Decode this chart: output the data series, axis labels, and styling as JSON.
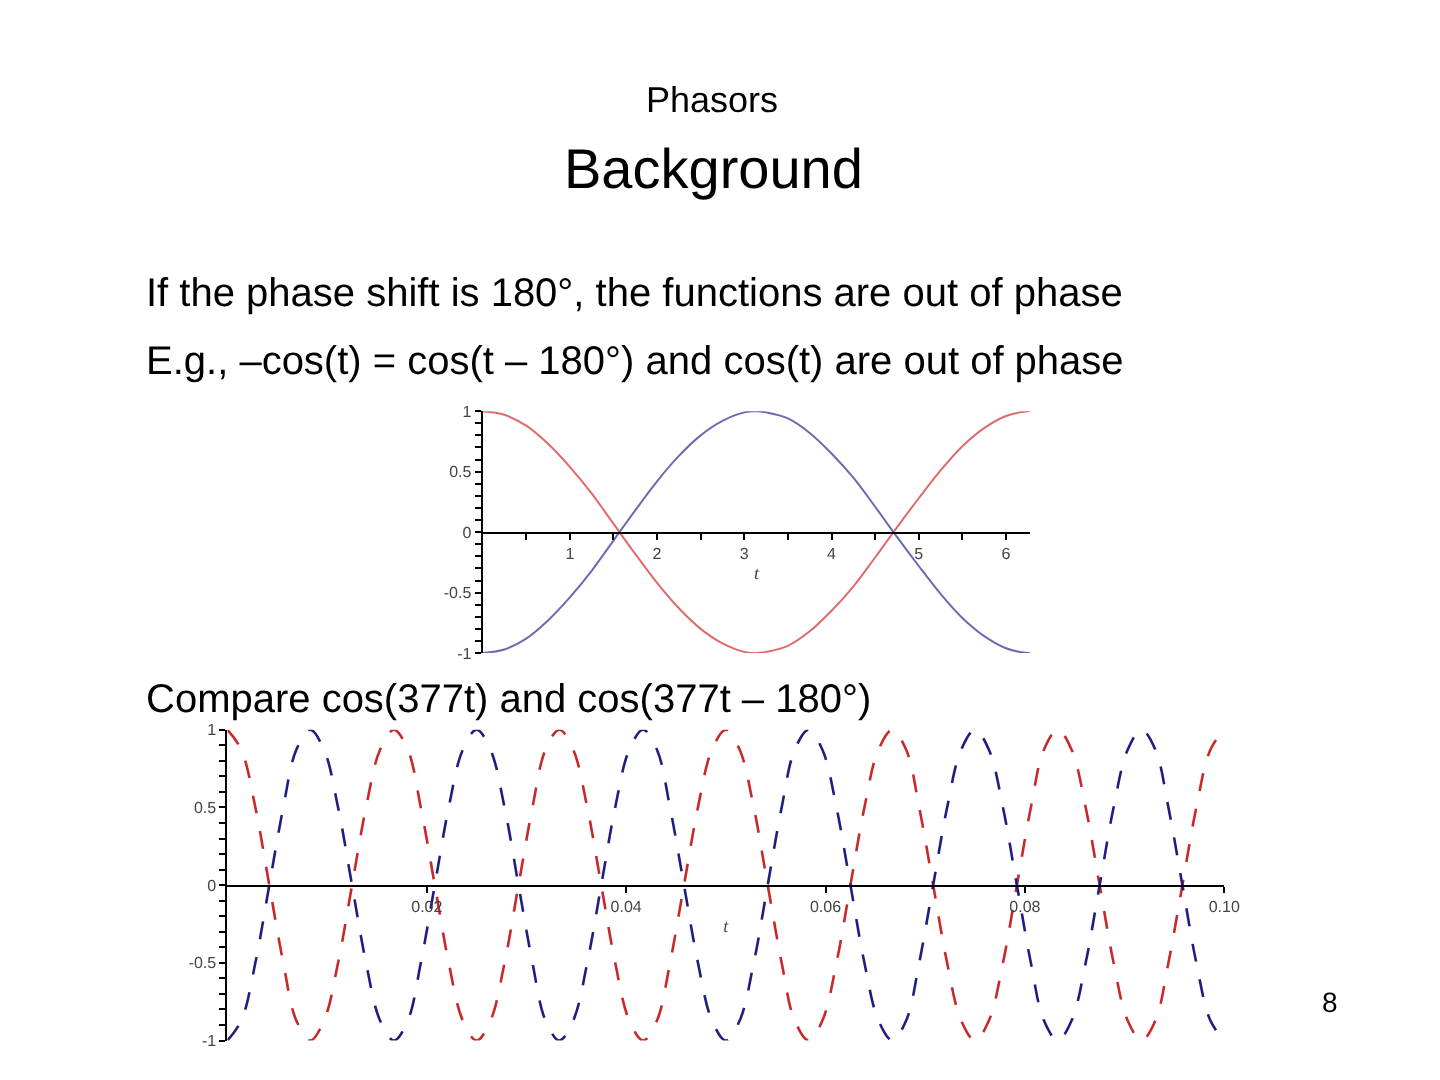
{
  "chart_data": [
    {
      "type": "line",
      "title": "Background",
      "subtitle": "Phasors",
      "annotations": [
        "If the phase shift is 180°, the functions are out of phase",
        "E.g., –cos(t) = cos(t – 180°) and cos(t) are out of phase"
      ],
      "xlabel": "t",
      "line_style": "solid",
      "x": [
        0,
        0.25,
        0.5,
        0.75,
        1.0,
        1.25,
        1.5,
        1.75,
        2.0,
        2.25,
        2.5,
        2.75,
        3.0,
        3.14,
        3.25,
        3.5,
        3.75,
        4.0,
        4.25,
        4.5,
        4.75,
        5.0,
        5.25,
        5.5,
        5.75,
        6.0,
        6.25,
        6.28
      ],
      "series": [
        {
          "color": "#e06a6a",
          "values": [
            1.0,
            0.97,
            0.88,
            0.73,
            0.54,
            0.32,
            0.07,
            -0.18,
            -0.42,
            -0.63,
            -0.8,
            -0.92,
            -0.99,
            -1.0,
            -0.99,
            -0.94,
            -0.82,
            -0.65,
            -0.45,
            -0.21,
            0.04,
            0.28,
            0.51,
            0.71,
            0.86,
            0.96,
            1.0,
            1.0
          ]
        },
        {
          "color": "#6a6ab4",
          "values": [
            -1.0,
            -0.97,
            -0.88,
            -0.73,
            -0.54,
            -0.32,
            -0.07,
            0.18,
            0.42,
            0.63,
            0.8,
            0.92,
            0.99,
            1.0,
            0.99,
            0.94,
            0.82,
            0.65,
            0.45,
            0.21,
            -0.04,
            -0.28,
            -0.51,
            -0.71,
            -0.86,
            -0.96,
            -1.0,
            -1.0
          ]
        }
      ],
      "xlim": [
        0,
        6.28
      ],
      "ylim": [
        -1,
        1
      ],
      "xticks": [
        {
          "value": 0.5,
          "label": null
        },
        1,
        {
          "value": 1.5,
          "label": null
        },
        2,
        {
          "value": 2.5,
          "label": null
        },
        3,
        {
          "value": 3.5,
          "label": null
        },
        4,
        {
          "value": 4.5,
          "label": null
        },
        5,
        {
          "value": 5.5,
          "label": null
        },
        6
      ],
      "yticks": [
        -1,
        {
          "value": -0.9,
          "label": null
        },
        {
          "value": -0.8,
          "label": null
        },
        {
          "value": -0.7,
          "label": null
        },
        {
          "value": -0.6,
          "label": null
        },
        -0.5,
        {
          "value": -0.4,
          "label": null
        },
        {
          "value": -0.3,
          "label": null
        },
        {
          "value": -0.2,
          "label": null
        },
        {
          "value": -0.1,
          "label": null
        },
        0,
        {
          "value": 0.1,
          "label": null
        },
        {
          "value": 0.2,
          "label": null
        },
        {
          "value": 0.3,
          "label": null
        },
        {
          "value": 0.4,
          "label": null
        },
        0.5,
        {
          "value": 0.6,
          "label": null
        },
        {
          "value": 0.7,
          "label": null
        },
        {
          "value": 0.8,
          "label": null
        },
        {
          "value": 0.9,
          "label": null
        },
        1
      ]
    },
    {
      "type": "line",
      "title": "Compare cos(377t) and cos(377t – 180°)",
      "annotations": [
        "8"
      ],
      "xlabel": "t",
      "line_style": "dashed",
      "x": [
        0,
        0.0014,
        0.0028,
        0.0042,
        0.0056,
        0.0069,
        0.0083,
        0.0097,
        0.0111,
        0.0125,
        0.0139,
        0.0153,
        0.0167,
        0.0181,
        0.0194,
        0.0208,
        0.0222,
        0.0236,
        0.025,
        0.0264,
        0.0278,
        0.0292,
        0.0306,
        0.0319,
        0.0333,
        0.0347,
        0.0361,
        0.0375,
        0.0389,
        0.0403,
        0.0417,
        0.0431,
        0.0444,
        0.0458,
        0.0472,
        0.0486,
        0.05,
        0.0514,
        0.0528,
        0.0542,
        0.0556,
        0.0569,
        0.0583,
        0.0597,
        0.0611,
        0.0625,
        0.0639,
        0.0653,
        0.0667,
        0.0681,
        0.0694,
        0.0708,
        0.0722,
        0.0736,
        0.075,
        0.0764,
        0.0778,
        0.0792,
        0.0806,
        0.0819,
        0.0833,
        0.0847,
        0.0861,
        0.0875,
        0.0889,
        0.0903,
        0.0917,
        0.0931,
        0.0944,
        0.0958,
        0.0972,
        0.0986,
        0.1
      ],
      "series": [
        {
          "color": "#c82828",
          "values": [
            1,
            0.87,
            0.5,
            0,
            -0.5,
            -0.87,
            -1,
            -0.87,
            -0.5,
            0,
            0.5,
            0.87,
            1,
            0.87,
            0.5,
            0,
            -0.5,
            -0.87,
            -1,
            -0.87,
            -0.5,
            0,
            0.5,
            0.87,
            1,
            0.87,
            0.5,
            0,
            -0.5,
            -0.87,
            -1,
            -0.87,
            -0.5,
            0,
            0.5,
            0.87,
            1,
            0.87,
            0.5,
            0,
            -0.5,
            -0.87,
            -1,
            -0.87,
            -0.5,
            0,
            0.5,
            0.87,
            1,
            0.87,
            0.5,
            0,
            -0.5,
            -0.87,
            -1,
            -0.87,
            -0.5,
            0,
            0.5,
            0.87,
            1,
            0.87,
            0.5,
            0,
            -0.5,
            -0.87,
            -1,
            -0.87,
            -0.5,
            0,
            0.5,
            0.87,
            1
          ]
        },
        {
          "color": "#1e1e82",
          "values": [
            -1,
            -0.87,
            -0.5,
            0,
            0.5,
            0.87,
            1,
            0.87,
            0.5,
            0,
            -0.5,
            -0.87,
            -1,
            -0.87,
            -0.5,
            0,
            0.5,
            0.87,
            1,
            0.87,
            0.5,
            0,
            -0.5,
            -0.87,
            -1,
            -0.87,
            -0.5,
            0,
            0.5,
            0.87,
            1,
            0.87,
            0.5,
            0,
            -0.5,
            -0.87,
            -1,
            -0.87,
            -0.5,
            0,
            0.5,
            0.87,
            1,
            0.87,
            0.5,
            0,
            -0.5,
            -0.87,
            -1,
            -0.87,
            -0.5,
            0,
            0.5,
            0.87,
            1,
            0.87,
            0.5,
            0,
            -0.5,
            -0.87,
            -1,
            -0.87,
            -0.5,
            0,
            0.5,
            0.87,
            1,
            0.87,
            0.5,
            0,
            -0.5,
            -0.87,
            -1
          ]
        }
      ],
      "xlim": [
        0,
        0.1
      ],
      "ylim": [
        -1,
        1
      ],
      "xticks": [
        0.02,
        0.04,
        0.06,
        0.08,
        {
          "value": 0.1,
          "label": "0.10"
        }
      ],
      "yticks": [
        -1,
        {
          "value": -0.9,
          "label": null
        },
        {
          "value": -0.8,
          "label": null
        },
        {
          "value": -0.7,
          "label": null
        },
        {
          "value": -0.6,
          "label": null
        },
        -0.5,
        {
          "value": -0.4,
          "label": null
        },
        {
          "value": -0.3,
          "label": null
        },
        {
          "value": -0.2,
          "label": null
        },
        {
          "value": -0.1,
          "label": null
        },
        0,
        {
          "value": 0.1,
          "label": null
        },
        {
          "value": 0.2,
          "label": null
        },
        {
          "value": 0.3,
          "label": null
        },
        {
          "value": 0.4,
          "label": null
        },
        0.5,
        {
          "value": 0.6,
          "label": null
        },
        {
          "value": 0.7,
          "label": null
        },
        {
          "value": 0.8,
          "label": null
        },
        {
          "value": 0.9,
          "label": null
        },
        1
      ]
    }
  ]
}
